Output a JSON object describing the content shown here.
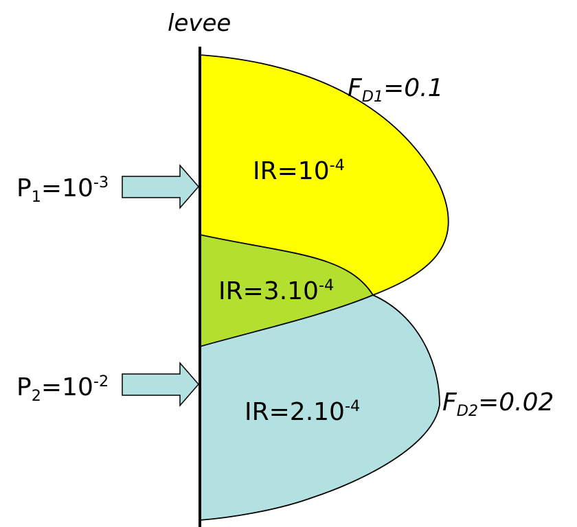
{
  "levee_label": "levee",
  "zone_upper": {
    "label": "IR=10",
    "exp": "-4",
    "fill": "#ffff00"
  },
  "zone_overlap": {
    "label": "IR=3.10",
    "exp": "-4",
    "fill": "#b3e02e"
  },
  "zone_lower": {
    "label": "IR=2.10",
    "exp": "-4",
    "fill": "#b3e0e0"
  },
  "fd1": {
    "base": "F",
    "sub": "D1",
    "value": "=0.1"
  },
  "fd2": {
    "base": "F",
    "sub": "D2",
    "value": "=0.02"
  },
  "p1": {
    "base": "P",
    "sub": "1",
    "eq": "=10",
    "exp": "-3"
  },
  "p2": {
    "base": "P",
    "sub": "2",
    "eq": "=10",
    "exp": "-2"
  },
  "arrow_fill": "#b3e0e0"
}
